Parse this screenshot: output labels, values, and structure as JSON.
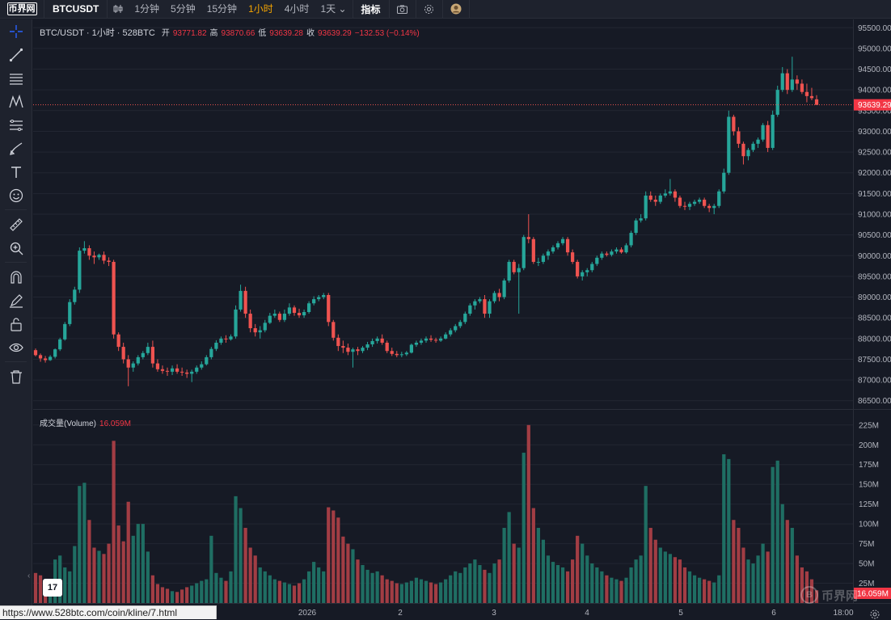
{
  "topbar": {
    "logo": "币界网",
    "symbol": "BTCUSDT",
    "timeframes": [
      "1分钟",
      "5分钟",
      "15分钟",
      "1小时",
      "4小时",
      "1天"
    ],
    "active_timeframe": "1小时",
    "indicators_label": "指标"
  },
  "legend": {
    "title": "BTC/USDT · 1小时 · 528BTC",
    "open_label": "开",
    "open": "93771.82",
    "high_label": "高",
    "high": "93870.66",
    "low_label": "低",
    "low": "93639.28",
    "close_label": "收",
    "close": "93639.29",
    "change": "−132.53 (−0.14%)"
  },
  "volume_legend": {
    "label": "成交量(Volume)",
    "value": "16.059M"
  },
  "price_axis": {
    "ticks": [
      "95500.00",
      "95000.00",
      "94500.00",
      "94000.00",
      "93500.00",
      "93000.00",
      "92500.00",
      "92000.00",
      "91500.00",
      "91000.00",
      "90500.00",
      "90000.00",
      "89500.00",
      "89000.00",
      "88500.00",
      "88000.00",
      "87500.00",
      "87000.00",
      "86500.00"
    ],
    "last_price_label": "93639.29"
  },
  "volume_axis": {
    "ticks": [
      "225M",
      "200M",
      "175M",
      "150M",
      "125M",
      "100M",
      "75M",
      "50M",
      "25M"
    ],
    "last_volume_label": "16.059M"
  },
  "time_axis": {
    "ticks": [
      "2026",
      "2",
      "3",
      "4",
      "5",
      "6",
      "18:00"
    ]
  },
  "watermark": "币界网",
  "tv_logo": "17",
  "url_status": "https://www.528btc.com/coin/kline/7.html",
  "colors": {
    "up": "#26a69a",
    "down": "#ef5350",
    "background": "#161a25",
    "accent": "#f7a600"
  },
  "chart_data": {
    "type": "candlestick",
    "symbol": "BTC/USDT",
    "interval": "1小时",
    "ylim": [
      86300,
      95700
    ],
    "volume_ylim": [
      0,
      235000000
    ],
    "candles": [
      [
        87720,
        87760,
        87570,
        87600,
        38000000
      ],
      [
        87600,
        87640,
        87440,
        87520,
        35000000
      ],
      [
        87520,
        87580,
        87420,
        87480,
        28000000
      ],
      [
        87480,
        87600,
        87460,
        87560,
        30000000
      ],
      [
        87560,
        87760,
        87520,
        87740,
        55000000
      ],
      [
        87740,
        88020,
        87700,
        87980,
        60000000
      ],
      [
        87980,
        88400,
        87950,
        88350,
        45000000
      ],
      [
        88350,
        88950,
        88300,
        88880,
        40000000
      ],
      [
        88880,
        89250,
        88820,
        89180,
        72000000
      ],
      [
        89180,
        90200,
        89100,
        90120,
        148000000
      ],
      [
        90120,
        90350,
        90050,
        90180,
        152000000
      ],
      [
        90180,
        90250,
        89900,
        90000,
        105000000
      ],
      [
        90000,
        90100,
        89800,
        89960,
        70000000
      ],
      [
        89960,
        90050,
        89900,
        90020,
        66000000
      ],
      [
        90020,
        90100,
        89800,
        89880,
        62000000
      ],
      [
        89880,
        89960,
        89750,
        89850,
        75000000
      ],
      [
        89850,
        89900,
        88000,
        88100,
        205000000
      ],
      [
        88100,
        88150,
        87700,
        87800,
        98000000
      ],
      [
        87800,
        87900,
        87400,
        87500,
        78000000
      ],
      [
        87500,
        87600,
        86850,
        87300,
        128000000
      ],
      [
        87300,
        87450,
        87200,
        87400,
        85000000
      ],
      [
        87400,
        87600,
        87350,
        87550,
        100000000
      ],
      [
        87550,
        87700,
        87500,
        87650,
        100000000
      ],
      [
        87650,
        87900,
        87600,
        87800,
        65000000
      ],
      [
        87800,
        87950,
        87300,
        87400,
        35000000
      ],
      [
        87400,
        87500,
        87200,
        87260,
        24000000
      ],
      [
        87260,
        87350,
        87150,
        87220,
        20000000
      ],
      [
        87220,
        87300,
        87100,
        87200,
        18000000
      ],
      [
        87200,
        87350,
        87120,
        87280,
        15000000
      ],
      [
        87280,
        87380,
        87150,
        87200,
        14000000
      ],
      [
        87200,
        87300,
        87100,
        87180,
        17000000
      ],
      [
        87180,
        87250,
        87050,
        87150,
        20000000
      ],
      [
        87150,
        87250,
        86950,
        87200,
        22000000
      ],
      [
        87200,
        87350,
        87150,
        87300,
        25000000
      ],
      [
        87300,
        87450,
        87250,
        87380,
        28000000
      ],
      [
        87380,
        87600,
        87350,
        87550,
        30000000
      ],
      [
        87550,
        87800,
        87500,
        87750,
        85000000
      ],
      [
        87750,
        87960,
        87700,
        87900,
        38000000
      ],
      [
        87900,
        88050,
        87850,
        88000,
        32000000
      ],
      [
        88000,
        88080,
        87900,
        87980,
        28000000
      ],
      [
        87980,
        88100,
        87950,
        88050,
        40000000
      ],
      [
        88050,
        88800,
        88000,
        88700,
        135000000
      ],
      [
        88700,
        89300,
        88650,
        89150,
        120000000
      ],
      [
        89150,
        89250,
        88500,
        88600,
        95000000
      ],
      [
        88600,
        88700,
        88150,
        88250,
        70000000
      ],
      [
        88250,
        88350,
        88050,
        88150,
        60000000
      ],
      [
        88150,
        88300,
        88000,
        88200,
        45000000
      ],
      [
        88200,
        88450,
        88150,
        88380,
        40000000
      ],
      [
        88380,
        88620,
        88350,
        88550,
        35000000
      ],
      [
        88550,
        88700,
        88500,
        88600,
        30000000
      ],
      [
        88600,
        88650,
        88400,
        88450,
        28000000
      ],
      [
        88450,
        88700,
        88400,
        88600,
        26000000
      ],
      [
        88600,
        88850,
        88550,
        88750,
        24000000
      ],
      [
        88750,
        88800,
        88550,
        88620,
        22000000
      ],
      [
        88620,
        88720,
        88500,
        88560,
        25000000
      ],
      [
        88560,
        88700,
        88500,
        88640,
        30000000
      ],
      [
        88640,
        88900,
        88600,
        88850,
        40000000
      ],
      [
        88850,
        89020,
        88800,
        88950,
        52000000
      ],
      [
        88950,
        89050,
        88900,
        89000,
        45000000
      ],
      [
        89000,
        89100,
        88950,
        89050,
        40000000
      ],
      [
        89050,
        89100,
        88300,
        88400,
        121000000
      ],
      [
        88400,
        88450,
        87950,
        88020,
        117000000
      ],
      [
        88020,
        88100,
        87700,
        87820,
        108000000
      ],
      [
        87820,
        87950,
        87650,
        87780,
        84000000
      ],
      [
        87780,
        87880,
        87600,
        87680,
        75000000
      ],
      [
        87680,
        87780,
        87300,
        87740,
        68000000
      ],
      [
        87740,
        87800,
        87600,
        87700,
        55000000
      ],
      [
        87700,
        87820,
        87650,
        87780,
        48000000
      ],
      [
        87780,
        87920,
        87720,
        87860,
        42000000
      ],
      [
        87860,
        88000,
        87800,
        87940,
        38000000
      ],
      [
        87940,
        88050,
        87880,
        88000,
        40000000
      ],
      [
        88000,
        88100,
        87850,
        87900,
        35000000
      ],
      [
        87900,
        87950,
        87650,
        87700,
        30000000
      ],
      [
        87700,
        87780,
        87580,
        87630,
        28000000
      ],
      [
        87630,
        87700,
        87550,
        87600,
        25000000
      ],
      [
        87600,
        87680,
        87550,
        87620,
        24000000
      ],
      [
        87620,
        87700,
        87580,
        87660,
        26000000
      ],
      [
        87660,
        87880,
        87640,
        87850,
        28000000
      ],
      [
        87850,
        87950,
        87800,
        87900,
        32000000
      ],
      [
        87900,
        88000,
        87850,
        87950,
        30000000
      ],
      [
        87950,
        88050,
        87900,
        88000,
        28000000
      ],
      [
        88000,
        88080,
        87920,
        87970,
        26000000
      ],
      [
        87970,
        88020,
        87900,
        87950,
        24000000
      ],
      [
        87950,
        88050,
        87920,
        88000,
        26000000
      ],
      [
        88000,
        88150,
        87980,
        88100,
        30000000
      ],
      [
        88100,
        88250,
        88050,
        88200,
        35000000
      ],
      [
        88200,
        88350,
        88150,
        88300,
        40000000
      ],
      [
        88300,
        88450,
        88250,
        88400,
        38000000
      ],
      [
        88400,
        88650,
        88350,
        88600,
        45000000
      ],
      [
        88600,
        88850,
        88550,
        88800,
        50000000
      ],
      [
        88800,
        88950,
        88700,
        88900,
        55000000
      ],
      [
        88900,
        89000,
        88850,
        88950,
        48000000
      ],
      [
        88950,
        89050,
        88500,
        88600,
        42000000
      ],
      [
        88600,
        88950,
        88500,
        88900,
        38000000
      ],
      [
        88900,
        89150,
        88850,
        89100,
        50000000
      ],
      [
        89100,
        89200,
        88900,
        89000,
        55000000
      ],
      [
        89000,
        89450,
        88950,
        89400,
        95000000
      ],
      [
        89400,
        89900,
        89350,
        89850,
        115000000
      ],
      [
        89850,
        89900,
        89550,
        89600,
        75000000
      ],
      [
        89600,
        89800,
        88600,
        89700,
        70000000
      ],
      [
        89700,
        90500,
        89650,
        90450,
        190000000
      ],
      [
        90450,
        91000,
        90300,
        90400,
        225000000
      ],
      [
        90400,
        90450,
        89800,
        89850,
        120000000
      ],
      [
        89850,
        89950,
        89750,
        89850,
        95000000
      ],
      [
        89850,
        90050,
        89800,
        90000,
        80000000
      ],
      [
        90000,
        90150,
        89900,
        90100,
        60000000
      ],
      [
        90100,
        90250,
        90050,
        90200,
        52000000
      ],
      [
        90200,
        90350,
        90150,
        90300,
        48000000
      ],
      [
        90300,
        90450,
        90250,
        90400,
        45000000
      ],
      [
        90400,
        90450,
        90000,
        90080,
        40000000
      ],
      [
        90080,
        90150,
        89800,
        89850,
        55000000
      ],
      [
        89850,
        89900,
        89450,
        89500,
        85000000
      ],
      [
        89500,
        89650,
        89400,
        89600,
        75000000
      ],
      [
        89600,
        89700,
        89500,
        89650,
        60000000
      ],
      [
        89650,
        89850,
        89600,
        89800,
        50000000
      ],
      [
        89800,
        90000,
        89750,
        89950,
        45000000
      ],
      [
        89950,
        90100,
        89900,
        90050,
        40000000
      ],
      [
        90050,
        90100,
        89980,
        90020,
        35000000
      ],
      [
        90020,
        90150,
        89980,
        90100,
        32000000
      ],
      [
        90100,
        90200,
        90050,
        90150,
        30000000
      ],
      [
        90150,
        90200,
        90050,
        90080,
        28000000
      ],
      [
        90080,
        90300,
        90050,
        90250,
        32000000
      ],
      [
        90250,
        90600,
        90200,
        90550,
        45000000
      ],
      [
        90550,
        90900,
        90500,
        90850,
        55000000
      ],
      [
        90850,
        91000,
        90800,
        90900,
        60000000
      ],
      [
        90900,
        91550,
        90850,
        91450,
        148000000
      ],
      [
        91450,
        91550,
        91300,
        91350,
        95000000
      ],
      [
        91350,
        91450,
        91200,
        91300,
        80000000
      ],
      [
        91300,
        91500,
        91250,
        91450,
        70000000
      ],
      [
        91450,
        91600,
        91400,
        91500,
        65000000
      ],
      [
        91500,
        91850,
        91450,
        91550,
        62000000
      ],
      [
        91550,
        91600,
        91300,
        91400,
        58000000
      ],
      [
        91400,
        91450,
        91150,
        91200,
        55000000
      ],
      [
        91200,
        91300,
        91100,
        91180,
        45000000
      ],
      [
        91180,
        91300,
        91100,
        91250,
        40000000
      ],
      [
        91250,
        91350,
        91200,
        91300,
        35000000
      ],
      [
        91300,
        91400,
        91250,
        91350,
        32000000
      ],
      [
        91350,
        91400,
        91150,
        91200,
        30000000
      ],
      [
        91200,
        91250,
        91050,
        91150,
        28000000
      ],
      [
        91150,
        91250,
        91000,
        91200,
        26000000
      ],
      [
        91200,
        91600,
        91150,
        91550,
        35000000
      ],
      [
        91550,
        92100,
        91500,
        92000,
        188000000
      ],
      [
        92000,
        93500,
        91950,
        93350,
        182000000
      ],
      [
        93350,
        93400,
        92900,
        93000,
        105000000
      ],
      [
        93000,
        93100,
        92600,
        92700,
        95000000
      ],
      [
        92700,
        92750,
        92200,
        92400,
        70000000
      ],
      [
        92400,
        92600,
        92300,
        92550,
        55000000
      ],
      [
        92550,
        92750,
        92500,
        92700,
        50000000
      ],
      [
        92700,
        92850,
        92600,
        92800,
        60000000
      ],
      [
        92800,
        93200,
        92750,
        93150,
        75000000
      ],
      [
        93150,
        93250,
        92500,
        92600,
        65000000
      ],
      [
        92600,
        93500,
        92550,
        93400,
        172000000
      ],
      [
        93400,
        94100,
        93350,
        94000,
        180000000
      ],
      [
        94000,
        94550,
        93950,
        94400,
        125000000
      ],
      [
        94400,
        94500,
        93900,
        94000,
        105000000
      ],
      [
        94000,
        94800,
        93950,
        94250,
        95000000
      ],
      [
        94250,
        94350,
        94000,
        94150,
        60000000
      ],
      [
        94150,
        94250,
        93900,
        93950,
        45000000
      ],
      [
        93950,
        94150,
        93700,
        93850,
        40000000
      ],
      [
        93850,
        94050,
        93750,
        93800,
        30000000
      ],
      [
        93771.82,
        93870.66,
        93639.28,
        93639.29,
        16059000
      ]
    ]
  }
}
